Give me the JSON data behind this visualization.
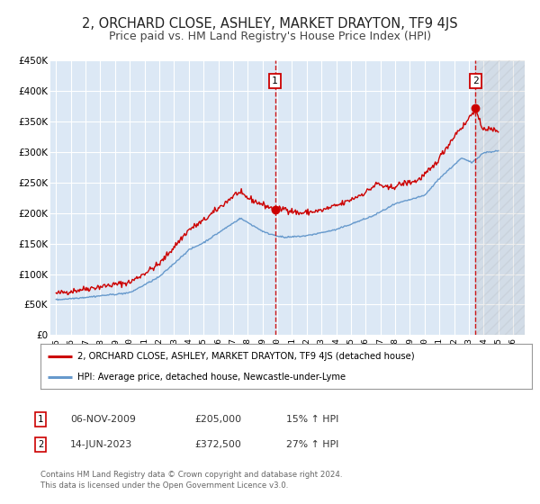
{
  "title": "2, ORCHARD CLOSE, ASHLEY, MARKET DRAYTON, TF9 4JS",
  "subtitle": "Price paid vs. HM Land Registry's House Price Index (HPI)",
  "title_fontsize": 10.5,
  "subtitle_fontsize": 9,
  "background_color": "#ffffff",
  "plot_bg_color": "#dce8f5",
  "grid_color": "#ffffff",
  "ylim": [
    0,
    450000
  ],
  "xlim_start": 1994.6,
  "xlim_end": 2026.8,
  "sale1_x": 2009.846,
  "sale1_y": 205000,
  "sale1_label": "1",
  "sale1_date": "06-NOV-2009",
  "sale1_price": "£205,000",
  "sale1_hpi": "15% ↑ HPI",
  "sale2_x": 2023.458,
  "sale2_y": 372500,
  "sale2_label": "2",
  "sale2_date": "14-JUN-2023",
  "sale2_price": "£372,500",
  "sale2_hpi": "27% ↑ HPI",
  "red_line_color": "#cc0000",
  "blue_line_color": "#6699cc",
  "legend_label_red": "2, ORCHARD CLOSE, ASHLEY, MARKET DRAYTON, TF9 4JS (detached house)",
  "legend_label_blue": "HPI: Average price, detached house, Newcastle-under-Lyme",
  "footer1": "Contains HM Land Registry data © Crown copyright and database right 2024.",
  "footer2": "This data is licensed under the Open Government Licence v3.0.",
  "yticks": [
    0,
    50000,
    100000,
    150000,
    200000,
    250000,
    300000,
    350000,
    400000,
    450000
  ],
  "ytick_labels": [
    "£0",
    "£50K",
    "£100K",
    "£150K",
    "£200K",
    "£250K",
    "£300K",
    "£350K",
    "£400K",
    "£450K"
  ],
  "xticks": [
    1995,
    1996,
    1997,
    1998,
    1999,
    2000,
    2001,
    2002,
    2003,
    2004,
    2005,
    2006,
    2007,
    2008,
    2009,
    2010,
    2011,
    2012,
    2013,
    2014,
    2015,
    2016,
    2017,
    2018,
    2019,
    2020,
    2021,
    2022,
    2023,
    2024,
    2025,
    2026
  ]
}
